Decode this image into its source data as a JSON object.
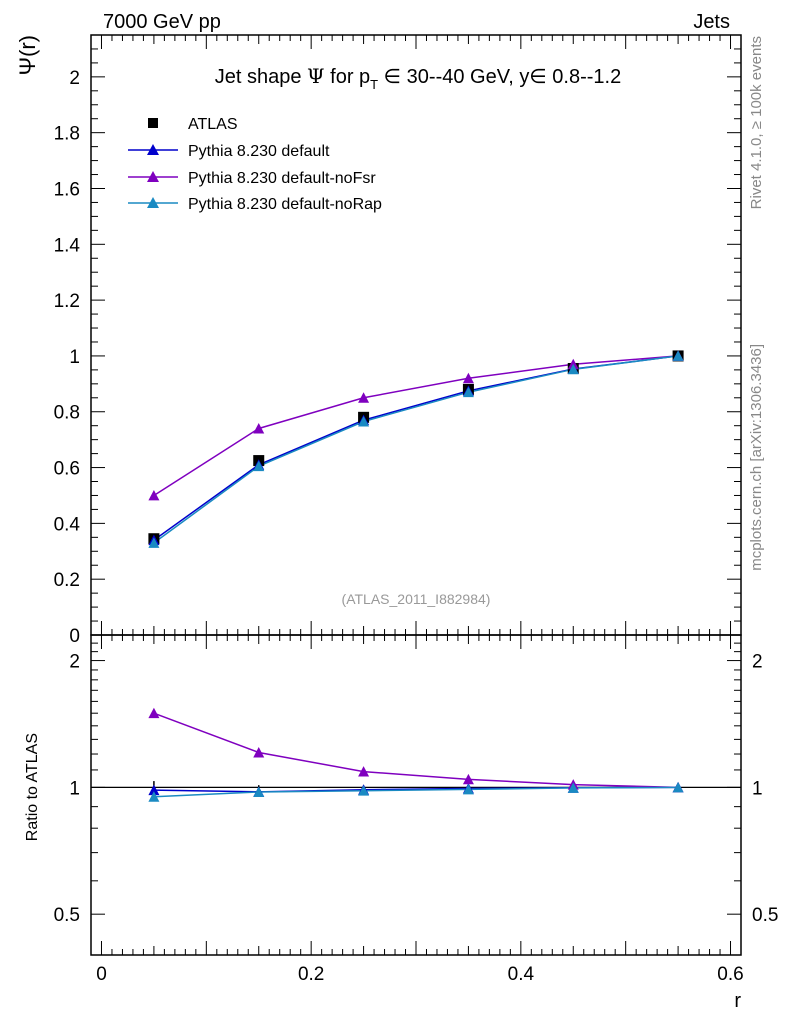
{
  "header": {
    "left_label": "7000 GeV pp",
    "right_label": "Jets",
    "side_label_top": "Rivet 4.1.0, ≥ 100k events",
    "side_label_bottom": "mcplots.cern.ch [arXiv:1306.3436]",
    "watermark": "(ATLAS_2011_I882984)"
  },
  "chart_data": [
    {
      "type": "line",
      "panel": "main",
      "title": "Jet shape Ψ for p_T ∈ 30--40 GeV, y ∈ 0.8--1.2",
      "title_parts": {
        "prefix": "Jet shape ",
        "psi": "Ψ",
        "for": " for p",
        "sub": "T",
        "middle": " ∈ 30--40 GeV, y",
        "suffix": "∈ 0.8--1.2"
      },
      "ylabel": "Ψ(r)",
      "xlabel": "",
      "xlim": [
        -0.01,
        0.61
      ],
      "ylim": [
        0,
        2.15
      ],
      "yticks_major": [
        0,
        0.2,
        0.4,
        0.6,
        0.8,
        1,
        1.2,
        1.4,
        1.6,
        1.8,
        2
      ],
      "ytick_labels": [
        "0",
        "0.2",
        "0.4",
        "0.6",
        "0.8",
        "1",
        "1.2",
        "1.4",
        "1.6",
        "1.8",
        "2"
      ],
      "x": [
        0.05,
        0.15,
        0.25,
        0.35,
        0.45,
        0.55
      ],
      "legend_position": "top-left",
      "series": [
        {
          "name": "ATLAS",
          "color": "#000000",
          "marker": "square",
          "line": false,
          "values": [
            0.345,
            0.625,
            0.78,
            0.88,
            0.955,
            1.0
          ]
        },
        {
          "name": "Pythia 8.230 default",
          "color": "#0000cc",
          "marker": "triangle",
          "line": true,
          "values": [
            0.34,
            0.61,
            0.77,
            0.875,
            0.953,
            1.0
          ]
        },
        {
          "name": "Pythia 8.230 default-noFsr",
          "color": "#7f00bf",
          "marker": "triangle",
          "line": true,
          "values": [
            0.5,
            0.74,
            0.85,
            0.92,
            0.97,
            1.0
          ]
        },
        {
          "name": "Pythia 8.230 default-noRap",
          "color": "#1a8ac2",
          "marker": "triangle",
          "line": true,
          "values": [
            0.33,
            0.605,
            0.765,
            0.87,
            0.952,
            1.0
          ]
        }
      ]
    },
    {
      "type": "line",
      "panel": "ratio",
      "ylabel": "Ratio to ATLAS",
      "xlabel": "r",
      "xlim": [
        -0.01,
        0.61
      ],
      "ylim": [
        0.4,
        2.3
      ],
      "yscale": "log",
      "yticks_major": [
        0.5,
        1,
        2
      ],
      "ytick_labels": [
        "0.5",
        "1",
        "2"
      ],
      "xticks_major": [
        0,
        0.2,
        0.4,
        0.6
      ],
      "xtick_labels": [
        "0",
        "0.2",
        "0.4",
        "0.6"
      ],
      "x": [
        0.05,
        0.15,
        0.25,
        0.35,
        0.45,
        0.55
      ],
      "reference_line": 1,
      "series": [
        {
          "name": "ATLAS",
          "color": "#000000",
          "marker": "errorbar",
          "values": [
            1,
            1,
            1,
            1,
            1,
            1
          ],
          "err": [
            0.035,
            0.012,
            0.01,
            0.008,
            0.005,
            0.003
          ]
        },
        {
          "name": "Pythia 8.230 default",
          "color": "#0000cc",
          "values": [
            0.985,
            0.976,
            0.987,
            0.994,
            0.998,
            1.0
          ]
        },
        {
          "name": "Pythia 8.230 default-noFsr",
          "color": "#7f00bf",
          "values": [
            1.5,
            1.21,
            1.09,
            1.045,
            1.015,
            1.0
          ]
        },
        {
          "name": "Pythia 8.230 default-noRap",
          "color": "#1a8ac2",
          "values": [
            0.95,
            0.975,
            0.982,
            0.989,
            0.997,
            1.0
          ]
        }
      ]
    }
  ]
}
